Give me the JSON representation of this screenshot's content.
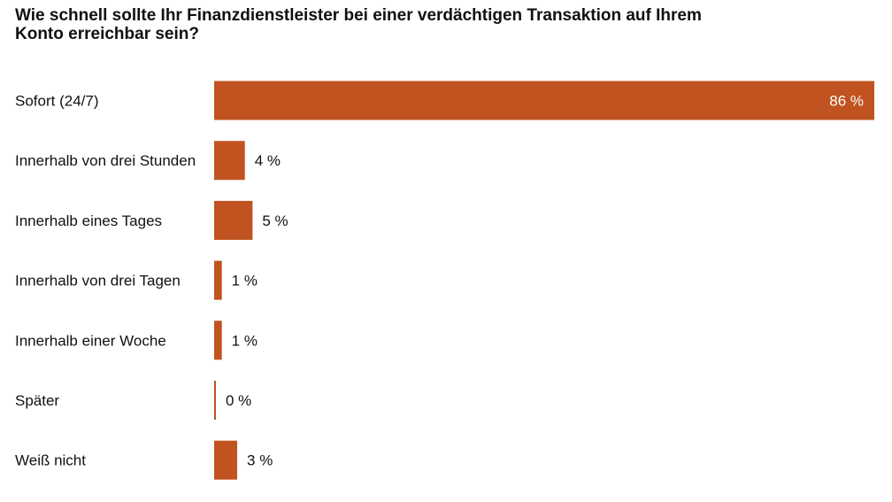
{
  "chart_data": {
    "type": "bar",
    "orientation": "horizontal",
    "title": "Wie schnell sollte Ihr Finanzdienstleister bei einer verdächtigen Transaktion auf Ihrem Konto erreichbar sein?",
    "categories": [
      "Sofort (24/7)",
      "Innerhalb von drei Stunden",
      "Innerhalb eines Tages",
      "Innerhalb von drei Tagen",
      "Innerhalb einer Woche",
      "Später",
      "Weiß nicht"
    ],
    "values": [
      86,
      4,
      5,
      1,
      1,
      0,
      3
    ],
    "value_labels": [
      "86 %",
      "4 %",
      "5 %",
      "1 %",
      "1 %",
      "0 %",
      "3 %"
    ],
    "xlim": [
      0,
      86
    ],
    "grid": false,
    "legend": "none",
    "bar_color": "#c0531f"
  }
}
